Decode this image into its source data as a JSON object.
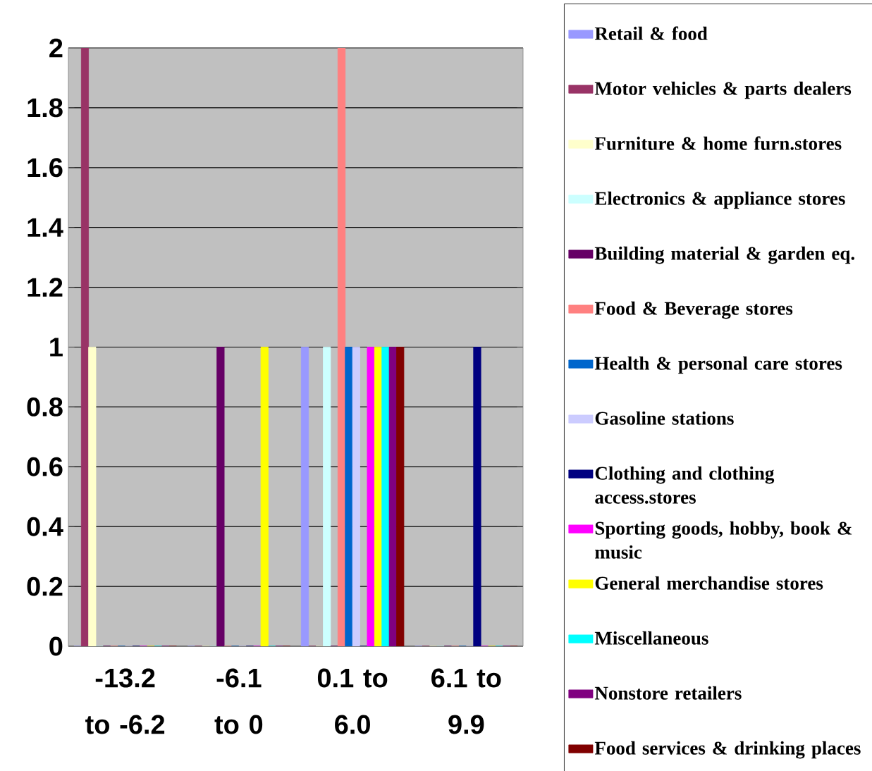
{
  "chart_data": {
    "type": "bar",
    "categories": [
      "-13.2 to -6.2",
      "-6.1 to 0",
      "0.1 to 6.0",
      "6.1 to 9.9"
    ],
    "series": [
      {
        "name": "Retail & food",
        "color": "#9999ff",
        "values": [
          0,
          0,
          1,
          0
        ]
      },
      {
        "name": "Motor vehicles & parts dealers",
        "color": "#993366",
        "values": [
          2,
          0,
          0,
          0
        ]
      },
      {
        "name": "Furniture & home furn.stores",
        "color": "#ffffcc",
        "values": [
          1,
          0,
          0,
          0
        ]
      },
      {
        "name": "Electronics & appliance stores",
        "color": "#ccffff",
        "values": [
          0,
          0,
          1,
          0
        ]
      },
      {
        "name": "Building material & garden eq.",
        "color": "#660066",
        "values": [
          0,
          1,
          0,
          0
        ]
      },
      {
        "name": "Food & Beverage stores",
        "color": "#ff8080",
        "values": [
          0,
          0,
          2,
          0
        ]
      },
      {
        "name": "Health & personal care stores",
        "color": "#0066cc",
        "values": [
          0,
          0,
          1,
          0
        ]
      },
      {
        "name": "Gasoline stations",
        "color": "#ccccff",
        "values": [
          0,
          0,
          1,
          0
        ]
      },
      {
        "name": "Clothing and clothing access.stores",
        "color": "#000080",
        "values": [
          0,
          0,
          0,
          1
        ]
      },
      {
        "name": "Sporting goods, hobby, book & music",
        "color": "#ff00ff",
        "values": [
          0,
          0,
          1,
          0
        ]
      },
      {
        "name": "General merchandise stores",
        "color": "#ffff00",
        "values": [
          0,
          1,
          1,
          0
        ]
      },
      {
        "name": "Miscellaneous",
        "color": "#00ffff",
        "values": [
          0,
          0,
          1,
          0
        ]
      },
      {
        "name": "Nonstore retailers",
        "color": "#800080",
        "values": [
          0,
          0,
          1,
          0
        ]
      },
      {
        "name": "Food services & drinking places",
        "color": "#800000",
        "values": [
          0,
          0,
          1,
          0
        ]
      }
    ],
    "ylim": [
      0,
      2
    ],
    "yticks": [
      0,
      0.2,
      0.4,
      0.6,
      0.8,
      1,
      1.2,
      1.4,
      1.6,
      1.8,
      2
    ],
    "grid": "y",
    "legend": "right"
  }
}
